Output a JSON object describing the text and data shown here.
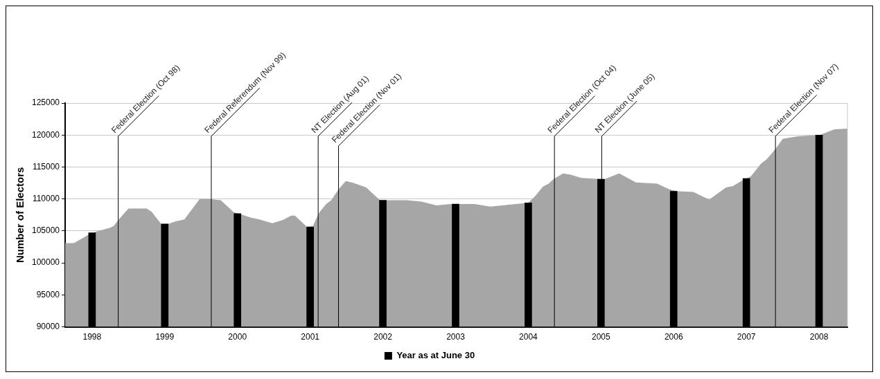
{
  "chart_data": {
    "type": "area",
    "ylabel": "Number of Electors",
    "xlim": [
      1997.63,
      2008.39
    ],
    "xticks": [
      1998,
      1999,
      2000,
      2001,
      2002,
      2003,
      2004,
      2005,
      2006,
      2007,
      2008
    ],
    "ylim": [
      90000,
      125000
    ],
    "yticks": [
      90000,
      95000,
      100000,
      105000,
      110000,
      115000,
      120000,
      125000
    ],
    "grid": "y",
    "legend": "bottom",
    "series": [
      {
        "color": "#a6a6a6",
        "x": [
          1997.63,
          1997.75,
          1997.95,
          1998.06,
          1998.25,
          1998.3,
          1998.36,
          1998.5,
          1998.75,
          1998.82,
          1998.95,
          1999.05,
          1999.15,
          1999.27,
          1999.48,
          1999.62,
          1999.77,
          1999.95,
          2000.05,
          2000.18,
          2000.3,
          2000.48,
          2000.62,
          2000.74,
          2000.79,
          2000.95,
          2001.04,
          2001.12,
          2001.22,
          2001.29,
          2001.39,
          2001.49,
          2001.57,
          2001.77,
          2001.96,
          2002.33,
          2002.53,
          2002.74,
          2002.93,
          2003.26,
          2003.48,
          2003.73,
          2004.0,
          2004.1,
          2004.2,
          2004.28,
          2004.36,
          2004.48,
          2004.58,
          2004.73,
          2005.0,
          2005.05,
          2005.25,
          2005.48,
          2005.77,
          2005.94,
          2006.05,
          2006.27,
          2006.49,
          2006.72,
          2006.81,
          2006.96,
          2007.06,
          2007.2,
          2007.28,
          2007.4,
          2007.5,
          2007.71,
          2008.01,
          2008.21,
          2008.39
        ],
        "values": [
          103100,
          103100,
          104400,
          104900,
          105500,
          105800,
          106700,
          108500,
          108500,
          108000,
          106100,
          106100,
          106500,
          106800,
          110000,
          110000,
          109800,
          107900,
          107600,
          107100,
          106800,
          106200,
          106700,
          107400,
          107400,
          105700,
          105800,
          107800,
          109200,
          109800,
          111500,
          112800,
          112600,
          111800,
          109800,
          109800,
          109600,
          109000,
          109200,
          109200,
          108800,
          109100,
          109400,
          110500,
          111900,
          112400,
          113200,
          114000,
          113800,
          113300,
          113100,
          113100,
          114000,
          112600,
          112400,
          111500,
          111200,
          111100,
          109900,
          111800,
          112000,
          113000,
          113500,
          115500,
          116200,
          117800,
          119400,
          119800,
          120000,
          120900,
          121000
        ]
      },
      {
        "type": "bar",
        "name": "Year as at June 30",
        "color": "#000000",
        "x": [
          1998,
          1999,
          2000,
          2001,
          2002,
          2003,
          2004,
          2005,
          2006,
          2007,
          2008
        ],
        "values": [
          104700,
          106100,
          107700,
          105600,
          109800,
          109200,
          109400,
          113100,
          111200,
          113200,
          120000
        ]
      }
    ],
    "ref_lines": [
      {
        "axis": "x",
        "value": 1998.36,
        "label": "Federal Election (Oct 98)"
      },
      {
        "axis": "x",
        "value": 1999.64,
        "label": "Federal Referendum (Nov 99)"
      },
      {
        "axis": "x",
        "value": 2001.11,
        "label": "NT Election (Aug 01)"
      },
      {
        "axis": "x",
        "value": 2001.39,
        "label": "Federal Election (Nov 01)"
      },
      {
        "axis": "x",
        "value": 2004.36,
        "label": "Federal Election (Oct 04)"
      },
      {
        "axis": "x",
        "value": 2005.01,
        "label": "NT Election (June 05)"
      },
      {
        "axis": "x",
        "value": 2007.4,
        "label": "Federal Election (Nov 07)"
      }
    ]
  }
}
